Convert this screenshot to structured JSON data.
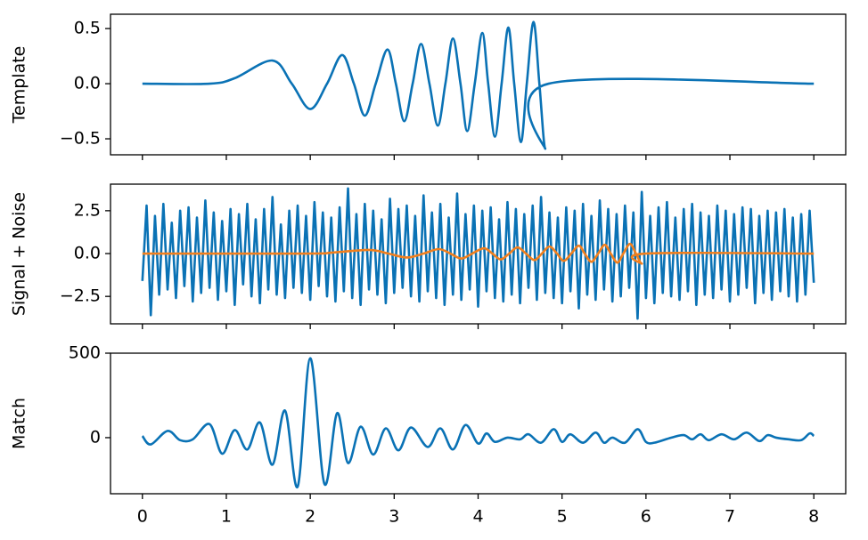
{
  "chart_data": [
    {
      "type": "line",
      "ylabel": "Template",
      "xlim": [
        -0.38,
        8.38
      ],
      "ylim": [
        -0.645,
        0.63
      ],
      "yticks": [
        {
          "value": -0.5,
          "label": "−0.5"
        },
        {
          "value": 0,
          "label": "0.0"
        },
        0.5
      ],
      "series": [
        {
          "color": "#0a72b5",
          "x": [
            0,
            0.8,
            1.1,
            1.55,
            1.78,
            2.0,
            2.2,
            2.38,
            2.52,
            2.65,
            2.78,
            2.92,
            3.02,
            3.12,
            3.22,
            3.32,
            3.42,
            3.52,
            3.61,
            3.7,
            3.79,
            3.87,
            3.96,
            4.05,
            4.12,
            4.2,
            4.28,
            4.36,
            4.43,
            4.51,
            4.58,
            4.66,
            4.73,
            4.8,
            4.84,
            8
          ],
          "values": [
            0,
            0,
            0.05,
            0.21,
            0,
            -0.23,
            0,
            0.26,
            0,
            -0.29,
            0,
            0.31,
            0,
            -0.34,
            0,
            0.36,
            0,
            -0.38,
            0,
            0.41,
            0,
            -0.43,
            0,
            0.46,
            0,
            -0.48,
            0,
            0.51,
            0,
            -0.53,
            0,
            0.56,
            0,
            -0.59,
            0,
            0
          ]
        }
      ]
    },
    {
      "type": "line",
      "ylabel": "Signal + Noise",
      "xlim": [
        -0.38,
        8.38
      ],
      "ylim": [
        -4.1,
        4.05
      ],
      "yticks": [
        {
          "value": -2.5,
          "label": "−2.5"
        },
        {
          "value": 0,
          "label": "0.0"
        },
        2.5
      ],
      "series": [
        {
          "color": "#0a72b5",
          "x": [
            0,
            0.05,
            0.1,
            0.15,
            0.2,
            0.25,
            0.3,
            0.35,
            0.4,
            0.45,
            0.5,
            0.55,
            0.6,
            0.65,
            0.7,
            0.75,
            0.8,
            0.85,
            0.9,
            0.95,
            1,
            1.05,
            1.1,
            1.15,
            1.2,
            1.25,
            1.3,
            1.35,
            1.4,
            1.45,
            1.5,
            1.55,
            1.6,
            1.65,
            1.7,
            1.75,
            1.8,
            1.85,
            1.9,
            1.95,
            2,
            2.05,
            2.1,
            2.15,
            2.2,
            2.25,
            2.3,
            2.35,
            2.4,
            2.45,
            2.5,
            2.55,
            2.6,
            2.65,
            2.7,
            2.75,
            2.8,
            2.85,
            2.9,
            2.95,
            3,
            3.05,
            3.1,
            3.15,
            3.2,
            3.25,
            3.3,
            3.35,
            3.4,
            3.45,
            3.5,
            3.55,
            3.6,
            3.65,
            3.7,
            3.75,
            3.8,
            3.85,
            3.9,
            3.95,
            4,
            4.05,
            4.1,
            4.15,
            4.2,
            4.25,
            4.3,
            4.35,
            4.4,
            4.45,
            4.5,
            4.55,
            4.6,
            4.65,
            4.7,
            4.75,
            4.8,
            4.85,
            4.9,
            4.95,
            5,
            5.05,
            5.1,
            5.15,
            5.2,
            5.25,
            5.3,
            5.35,
            5.4,
            5.45,
            5.5,
            5.55,
            5.6,
            5.65,
            5.7,
            5.75,
            5.8,
            5.85,
            5.9,
            5.95,
            6,
            6.05,
            6.1,
            6.15,
            6.2,
            6.25,
            6.3,
            6.35,
            6.4,
            6.45,
            6.5,
            6.55,
            6.6,
            6.65,
            6.7,
            6.75,
            6.8,
            6.85,
            6.9,
            6.95,
            7,
            7.05,
            7.1,
            7.15,
            7.2,
            7.25,
            7.3,
            7.35,
            7.4,
            7.45,
            7.5,
            7.55,
            7.6,
            7.65,
            7.7,
            7.75,
            7.8,
            7.85,
            7.9,
            7.95,
            8
          ],
          "values": [
            -1.6,
            2.8,
            -3.6,
            2.2,
            -2.4,
            2.9,
            -2.1,
            1.8,
            -2.6,
            2.5,
            -1.9,
            2.7,
            -2.8,
            2.1,
            -2.3,
            3.1,
            -2.0,
            2.4,
            -2.7,
            1.9,
            -2.2,
            2.6,
            -3.0,
            2.3,
            -1.8,
            2.9,
            -2.5,
            2.0,
            -2.9,
            2.6,
            -2.1,
            3.3,
            -2.4,
            1.7,
            -2.6,
            2.5,
            -2.0,
            2.8,
            -2.3,
            2.2,
            -2.7,
            3.0,
            -1.9,
            2.4,
            -2.5,
            2.1,
            -2.8,
            2.7,
            -2.2,
            3.8,
            -2.6,
            2.3,
            -3.0,
            2.9,
            -2.1,
            2.5,
            -2.4,
            2.0,
            -2.9,
            3.2,
            -2.3,
            2.6,
            -2.0,
            2.8,
            -2.5,
            2.2,
            -2.8,
            3.4,
            -2.2,
            2.4,
            -2.6,
            2.9,
            -3.0,
            2.1,
            -2.4,
            3.5,
            -2.7,
            2.3,
            -2.1,
            2.8,
            -3.1,
            2.5,
            -2.2,
            2.7,
            -2.6,
            2.0,
            -2.8,
            3.0,
            -2.4,
            2.6,
            -2.9,
            2.3,
            -2.0,
            2.8,
            -2.7,
            3.3,
            -2.3,
            2.4,
            -2.6,
            2.1,
            -2.9,
            2.7,
            -2.2,
            2.5,
            -3.2,
            2.9,
            -2.4,
            2.2,
            -2.7,
            3.1,
            -2.1,
            2.6,
            -2.8,
            2.3,
            -2.5,
            2.8,
            -2.0,
            2.4,
            -3.8,
            3.6,
            -2.6,
            2.2,
            -2.9,
            2.7,
            -2.3,
            3.0,
            -2.5,
            2.1,
            -2.7,
            2.6,
            -2.2,
            2.9,
            -3.0,
            2.4,
            -2.4,
            2.2,
            -2.6,
            2.8,
            -2.1,
            2.5,
            -2.8,
            2.3,
            -2.4,
            2.7,
            -2.0,
            2.6,
            -2.9,
            2.2,
            -2.3,
            2.5,
            -2.7,
            2.4,
            -2.2,
            2.6,
            -2.5,
            2.1,
            -2.8,
            2.3,
            -2.4,
            2.5,
            -1.7
          ]
        },
        {
          "color": "#f07f1e",
          "x": [
            0,
            1.95,
            2.25,
            2.7,
            2.93,
            3.15,
            3.35,
            3.53,
            3.67,
            3.8,
            3.93,
            4.07,
            4.17,
            4.27,
            4.37,
            4.47,
            4.57,
            4.67,
            4.76,
            4.85,
            4.94,
            5.02,
            5.11,
            5.2,
            5.27,
            5.35,
            5.43,
            5.51,
            5.58,
            5.66,
            5.73,
            5.81,
            5.88,
            5.95,
            5.99,
            8
          ],
          "values": [
            0,
            0,
            0.05,
            0.21,
            0,
            -0.23,
            0,
            0.26,
            0,
            -0.29,
            0,
            0.31,
            0,
            -0.34,
            0,
            0.36,
            0,
            -0.38,
            0,
            0.41,
            0,
            -0.43,
            0,
            0.46,
            0,
            -0.48,
            0,
            0.51,
            0,
            -0.53,
            0,
            0.56,
            0,
            -0.59,
            0,
            0
          ]
        }
      ]
    },
    {
      "type": "line",
      "ylabel": "Match",
      "xlim": [
        -0.38,
        8.38
      ],
      "ylim": [
        -332,
        500
      ],
      "yticks": [
        0,
        500
      ],
      "xticks": [
        0,
        1,
        2,
        3,
        4,
        5,
        6,
        7,
        8
      ],
      "series": [
        {
          "color": "#0a72b5",
          "x": [
            0,
            0.1,
            0.3,
            0.45,
            0.6,
            0.8,
            0.95,
            1.1,
            1.25,
            1.4,
            1.55,
            1.7,
            1.85,
            2.0,
            2.17,
            2.32,
            2.45,
            2.6,
            2.75,
            2.9,
            3.05,
            3.2,
            3.4,
            3.55,
            3.7,
            3.85,
            4.0,
            4.1,
            4.2,
            4.35,
            4.5,
            4.6,
            4.75,
            4.9,
            5.0,
            5.1,
            5.25,
            5.4,
            5.5,
            5.6,
            5.75,
            5.9,
            6.0,
            6.1,
            6.3,
            6.45,
            6.55,
            6.65,
            6.75,
            6.9,
            7.05,
            7.2,
            7.35,
            7.45,
            7.55,
            7.7,
            7.85,
            7.95,
            8.0
          ],
          "values": [
            10,
            -40,
            40,
            -15,
            -10,
            80,
            -95,
            45,
            -70,
            90,
            -160,
            160,
            -290,
            470,
            -275,
            145,
            -150,
            65,
            -100,
            55,
            -75,
            60,
            -55,
            55,
            -70,
            75,
            -35,
            25,
            -25,
            0,
            -10,
            20,
            -30,
            50,
            -25,
            20,
            -30,
            30,
            -30,
            0,
            -30,
            50,
            -25,
            -30,
            0,
            15,
            -10,
            20,
            -15,
            20,
            -10,
            30,
            -20,
            15,
            0,
            -10,
            -15,
            25,
            10
          ]
        }
      ]
    }
  ]
}
